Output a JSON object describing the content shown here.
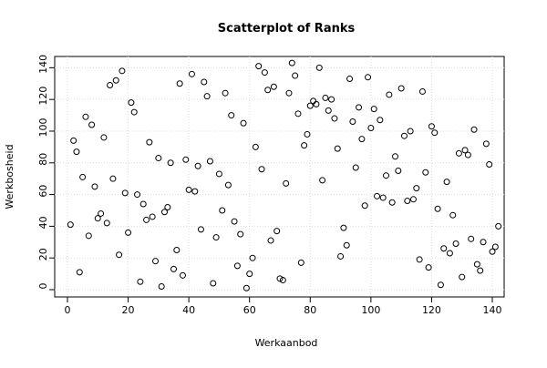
{
  "chart_data": {
    "type": "scatter",
    "title": "Scatterplot of Ranks",
    "x_label": "Werkaanbod",
    "y_label": "Werkbosheid",
    "x": [
      1,
      2,
      3,
      4,
      5,
      6,
      7,
      8,
      9,
      10,
      11,
      12,
      13,
      14,
      15,
      16,
      17,
      18,
      19,
      20,
      21,
      22,
      23,
      24,
      25,
      26,
      27,
      28,
      29,
      30,
      31,
      32,
      33,
      34,
      35,
      36,
      37,
      38,
      39,
      40,
      41,
      42,
      43,
      44,
      45,
      46,
      47,
      48,
      49,
      50,
      51,
      52,
      53,
      54,
      55,
      56,
      57,
      58,
      59,
      60,
      61,
      62,
      63,
      64,
      65,
      66,
      67,
      68,
      69,
      70,
      71,
      72,
      73,
      74,
      75,
      76,
      77,
      78,
      79,
      80,
      81,
      82,
      83,
      84,
      85,
      86,
      87,
      88,
      89,
      90,
      91,
      92,
      93,
      94,
      95,
      96,
      97,
      98,
      99,
      100,
      101,
      102,
      103,
      104,
      105,
      106,
      107,
      108,
      109,
      110,
      111,
      112,
      113,
      114,
      115,
      116,
      117,
      118,
      119,
      120,
      121,
      122,
      123,
      124,
      125,
      126,
      127,
      128,
      129,
      130,
      131,
      132,
      133,
      134,
      135,
      136,
      137,
      138,
      139,
      140,
      141,
      142
    ],
    "values": [
      41,
      94,
      87,
      11,
      71,
      109,
      34,
      104,
      65,
      45,
      48,
      96,
      42,
      129,
      70,
      132,
      22,
      138,
      61,
      36,
      118,
      112,
      60,
      5,
      54,
      44,
      93,
      46,
      18,
      83,
      2,
      49,
      52,
      80,
      13,
      25,
      130,
      9,
      82,
      63,
      136,
      62,
      78,
      38,
      131,
      122,
      81,
      4,
      33,
      73,
      50,
      124,
      66,
      110,
      43,
      15,
      35,
      105,
      1,
      10,
      20,
      90,
      141,
      76,
      137,
      126,
      31,
      128,
      37,
      7,
      6,
      67,
      124,
      143,
      135,
      111,
      17,
      91,
      98,
      116,
      119,
      117,
      140,
      69,
      121,
      113,
      120,
      108,
      89,
      21,
      39,
      28,
      133,
      106,
      77,
      115,
      95,
      53,
      134,
      102,
      114,
      59,
      107,
      58,
      72,
      123,
      55,
      84,
      75,
      127,
      97,
      56,
      100,
      57,
      64,
      19,
      125,
      74,
      14,
      103,
      99,
      51,
      3,
      26,
      68,
      23,
      47,
      29,
      86,
      8,
      88,
      85,
      32,
      101,
      16,
      12,
      30,
      92,
      79,
      24,
      27,
      40
    ],
    "color": "#000000",
    "xlim": [
      -4.2,
      143.9
    ],
    "ylim": [
      -4.6,
      147.1
    ],
    "xticks": [
      0,
      20,
      40,
      60,
      80,
      100,
      120,
      140
    ],
    "yticks": [
      0,
      20,
      40,
      60,
      80,
      100,
      120,
      140
    ],
    "grid": true
  }
}
